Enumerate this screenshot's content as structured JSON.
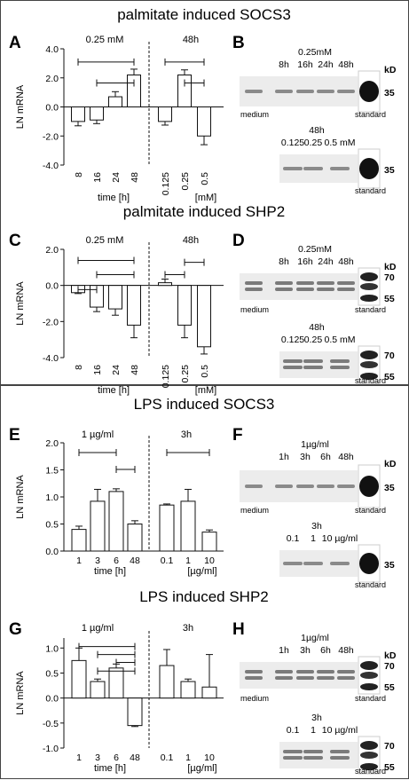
{
  "chart_data": [
    {
      "type": "bar",
      "panel": "A",
      "title": "palmitate induced SOCS3",
      "ylabel": "LN mRNA",
      "ylim": [
        -4,
        4
      ],
      "yticks": [
        "4.0",
        "2.0",
        "0.0",
        "-2.0",
        "-4.0"
      ],
      "groups": [
        {
          "label": "0.25 mM",
          "xlabel": "time [h]",
          "categories": [
            "8",
            "16",
            "24",
            "48"
          ],
          "values": [
            -1.0,
            -0.9,
            0.7,
            2.2
          ],
          "errors": [
            0.3,
            0.25,
            0.35,
            0.4
          ]
        },
        {
          "label": "48h",
          "xlabel": "[mM]",
          "categories": [
            "0.125",
            "0.25",
            "0.5"
          ],
          "values": [
            -1.0,
            2.2,
            -2.0
          ],
          "errors": [
            0.25,
            0.35,
            0.6
          ]
        }
      ]
    },
    {
      "type": "bar",
      "panel": "C",
      "title": "palmitate induced SHP2",
      "ylabel": "LN mRNA",
      "ylim": [
        -4,
        2
      ],
      "yticks": [
        "2.0",
        "0.0",
        "-2.0",
        "-4.0"
      ],
      "groups": [
        {
          "label": "0.25 mM",
          "xlabel": "time [h]",
          "categories": [
            "8",
            "16",
            "24",
            "48"
          ],
          "values": [
            -0.4,
            -1.2,
            -1.3,
            -2.2
          ],
          "errors": [
            0.05,
            0.25,
            0.35,
            0.7
          ]
        },
        {
          "label": "48h",
          "xlabel": "[mM]",
          "categories": [
            "0.125",
            "0.25",
            "0.5"
          ],
          "values": [
            0.15,
            -2.2,
            -3.4
          ],
          "errors": [
            0.2,
            0.7,
            0.4
          ]
        }
      ]
    },
    {
      "type": "bar",
      "panel": "E",
      "title": "LPS induced SOCS3",
      "ylabel": "LN mRNA",
      "ylim": [
        0,
        2
      ],
      "yticks": [
        "2.0",
        "1.5",
        "1.0",
        "0.5",
        "0.0"
      ],
      "groups": [
        {
          "label": "1 µg/ml",
          "xlabel": "time [h]",
          "categories": [
            "1",
            "3",
            "6",
            "48"
          ],
          "values": [
            0.4,
            0.92,
            1.1,
            0.5
          ],
          "errors": [
            0.06,
            0.22,
            0.05,
            0.06
          ]
        },
        {
          "label": "3h",
          "xlabel": "[µg/ml]",
          "categories": [
            "0.1",
            "1",
            "10"
          ],
          "values": [
            0.85,
            0.92,
            0.35
          ],
          "errors": [
            0.02,
            0.22,
            0.04
          ]
        }
      ]
    },
    {
      "type": "bar",
      "panel": "G",
      "title": "LPS induced SHP2",
      "ylabel": "LN mRNA",
      "ylim": [
        -1,
        1.2
      ],
      "yticks": [
        "1.0",
        "0.5",
        "0.0",
        "-0.5",
        "-1.0"
      ],
      "groups": [
        {
          "label": "1 µg/ml",
          "xlabel": "time [h]",
          "categories": [
            "1",
            "3",
            "6",
            "48"
          ],
          "values": [
            0.75,
            0.33,
            0.6,
            -0.55
          ],
          "errors": [
            0.25,
            0.05,
            0.08,
            0.02
          ]
        },
        {
          "label": "3h",
          "xlabel": "[µg/ml]",
          "categories": [
            "0.1",
            "1",
            "10"
          ],
          "values": [
            0.65,
            0.33,
            0.22
          ],
          "errors": [
            0.32,
            0.05,
            0.65
          ]
        }
      ]
    }
  ],
  "blots": {
    "B": {
      "header": "0.25mM",
      "lanes": [
        "8h",
        "16h",
        "24h",
        "48h"
      ],
      "left": "medium",
      "standard": "standard",
      "kd": "kD",
      "marks": [
        "35"
      ],
      "header2": "48h",
      "lanes2": [
        "0.125",
        "0.25",
        "0.5 mM"
      ],
      "standard2": "standard",
      "marks2": [
        "35"
      ]
    },
    "D": {
      "header": "0.25mM",
      "lanes": [
        "8h",
        "16h",
        "24h",
        "48h"
      ],
      "left": "medium",
      "standard": "standard",
      "kd": "kD",
      "marks": [
        "70",
        "55"
      ],
      "header2": "48h",
      "lanes2": [
        "0.125",
        "0.25",
        "0.5 mM"
      ],
      "standard2": "standard",
      "marks2": [
        "70",
        "55"
      ]
    },
    "F": {
      "header": "1µg/ml",
      "lanes": [
        "1h",
        "3h",
        "6h",
        "48h"
      ],
      "left": "medium",
      "standard": "standard",
      "kd": "kD",
      "marks": [
        "35"
      ],
      "header2": "3h",
      "lanes2": [
        "0.1",
        "1",
        "10 µg/ml"
      ],
      "standard2": "standard",
      "marks2": [
        "35"
      ]
    },
    "H": {
      "header": "1µg/ml",
      "lanes": [
        "1h",
        "3h",
        "6h",
        "48h"
      ],
      "left": "medium",
      "standard": "standard",
      "kd": "kD",
      "marks": [
        "70",
        "55"
      ],
      "header2": "3h",
      "lanes2": [
        "0.1",
        "1",
        "10 µg/ml"
      ],
      "standard2": "standard",
      "marks2": [
        "70",
        "55"
      ]
    }
  },
  "panel_letters": {
    "A": "A",
    "B": "B",
    "C": "C",
    "D": "D",
    "E": "E",
    "F": "F",
    "G": "G",
    "H": "H"
  }
}
